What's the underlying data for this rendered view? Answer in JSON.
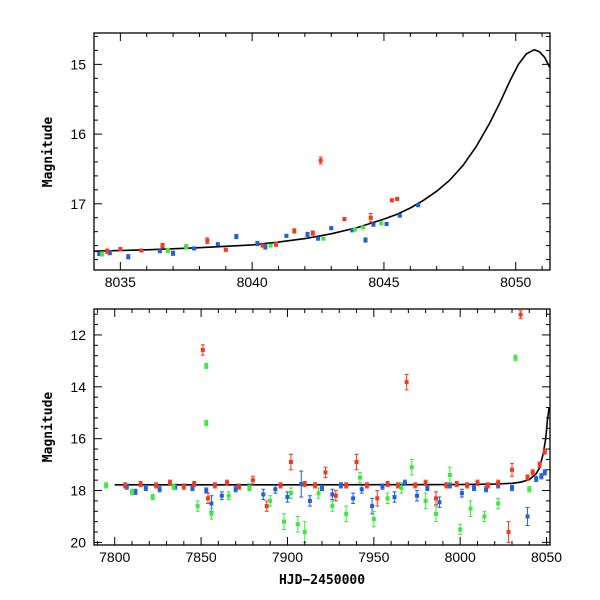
{
  "colors": {
    "blue": "#1f5fe0",
    "red": "#f03a1e",
    "green": "#3ee83e",
    "model": "#000000"
  },
  "chart_data": [
    {
      "type": "scatter",
      "title": "",
      "xlabel": "",
      "ylabel": "Magnitude",
      "xlim": [
        8034,
        8051.3
      ],
      "ylim": [
        17.95,
        14.55
      ],
      "y_inverted": true,
      "xticks": [
        8035,
        8040,
        8045,
        8050
      ],
      "yticks": [
        15,
        16,
        17
      ],
      "model_curve": {
        "name": "",
        "x": [
          8034,
          8036,
          8038,
          8040,
          8041,
          8042,
          8043,
          8044,
          8045,
          8045.5,
          8046,
          8046.5,
          8047,
          8047.5,
          8048,
          8048.5,
          8049,
          8049.4,
          8049.8,
          8050.1,
          8050.4,
          8050.7,
          8050.9,
          8051.1,
          8051.3
        ],
        "y": [
          17.68,
          17.66,
          17.63,
          17.59,
          17.55,
          17.5,
          17.43,
          17.34,
          17.22,
          17.15,
          17.06,
          16.95,
          16.82,
          16.66,
          16.45,
          16.18,
          15.85,
          15.55,
          15.22,
          15.0,
          14.85,
          14.79,
          14.82,
          14.9,
          15.05
        ]
      },
      "series": [
        {
          "color": "blue",
          "x": [
            8034.2,
            8034.6,
            8035.3,
            8036.5,
            8037.0,
            8037.8,
            8038.7,
            8039.4,
            8040.2,
            8040.5,
            8041.3,
            8042.1,
            8042.5,
            8043.0,
            8043.8,
            8044.3,
            8044.6,
            8045.1,
            8045.6,
            8046.3
          ],
          "y": [
            17.72,
            17.7,
            17.76,
            17.68,
            17.71,
            17.64,
            17.58,
            17.47,
            17.57,
            17.62,
            17.46,
            17.44,
            17.5,
            17.35,
            17.38,
            17.52,
            17.3,
            17.29,
            17.17,
            17.02
          ],
          "err": [
            0.02,
            0.03,
            0.03,
            0.02,
            0.03,
            0.02,
            0.02,
            0.03,
            0.03,
            0.03,
            0.02,
            0.03,
            0.02,
            0.02,
            0.02,
            0.03,
            0.02,
            0.02,
            0.02,
            0.02
          ]
        },
        {
          "color": "red",
          "x": [
            8034.5,
            8035.0,
            8035.8,
            8036.6,
            8037.5,
            8038.3,
            8039.0,
            8040.4,
            8040.9,
            8041.6,
            8042.3,
            8042.6,
            8043.5,
            8044.5,
            8045.3,
            8045.5
          ],
          "y": [
            17.68,
            17.65,
            17.67,
            17.6,
            17.61,
            17.53,
            17.66,
            17.6,
            17.58,
            17.39,
            17.42,
            16.38,
            17.22,
            17.2,
            16.95,
            16.93
          ],
          "err": [
            0.03,
            0.02,
            0.02,
            0.03,
            0.02,
            0.04,
            0.02,
            0.02,
            0.03,
            0.03,
            0.03,
            0.05,
            0.02,
            0.06,
            0.02,
            0.02
          ]
        },
        {
          "color": "green",
          "x": [
            8034.3,
            8036.8,
            8037.5,
            8040.7,
            8042.7,
            8043.9,
            8044.2,
            8044.9
          ],
          "y": [
            17.72,
            17.67,
            17.62,
            17.6,
            17.5,
            17.37,
            17.34,
            17.28
          ],
          "err": [
            0.03,
            0.03,
            0.03,
            0.02,
            0.02,
            0.02,
            0.02,
            0.02
          ]
        }
      ]
    },
    {
      "type": "scatter",
      "title": "",
      "xlabel": "HJD−2450000",
      "ylabel": "Magnitude",
      "xlim": [
        7788,
        8052
      ],
      "ylim": [
        20.1,
        11.0
      ],
      "y_inverted": true,
      "xticks": [
        7800,
        7850,
        7900,
        7950,
        8000,
        8050
      ],
      "yticks": [
        12,
        14,
        16,
        18,
        20
      ],
      "baseline_mag": 17.78,
      "model_curve": {
        "name": "",
        "x": [
          7800,
          7900,
          8000,
          8020,
          8030,
          8035,
          8040,
          8044,
          8046,
          8048,
          8049.5,
          8050.5,
          8051.5
        ],
        "y": [
          17.78,
          17.78,
          17.77,
          17.75,
          17.72,
          17.68,
          17.58,
          17.35,
          17.12,
          16.6,
          16.0,
          15.3,
          14.8
        ]
      },
      "series": [
        {
          "color": "blue",
          "x": [
            7807,
            7812,
            7818,
            7826,
            7835,
            7845,
            7853,
            7856,
            7862,
            7870,
            7878,
            7886,
            7893,
            7900,
            7908,
            7913,
            7920,
            7926,
            7931,
            7938,
            7943,
            7949,
            7955,
            7962,
            7968,
            7975,
            7981,
            7988,
            7994,
            8001,
            8008,
            8015,
            8022,
            8030,
            8039,
            8044,
            8047,
            8049
          ],
          "y": [
            17.85,
            18.05,
            17.9,
            17.95,
            17.85,
            17.9,
            18.0,
            18.5,
            18.2,
            17.95,
            17.85,
            18.15,
            17.95,
            18.25,
            17.75,
            18.4,
            17.9,
            18.15,
            17.8,
            18.3,
            17.95,
            18.6,
            17.85,
            18.25,
            17.7,
            18.2,
            17.9,
            18.45,
            17.8,
            18.1,
            17.9,
            17.95,
            17.8,
            17.9,
            19.0,
            17.55,
            17.45,
            17.3
          ],
          "err": [
            0.1,
            0.1,
            0.1,
            0.1,
            0.1,
            0.1,
            0.1,
            0.3,
            0.15,
            0.1,
            0.1,
            0.2,
            0.15,
            0.2,
            0.5,
            0.2,
            0.1,
            0.2,
            0.1,
            0.2,
            0.15,
            0.3,
            0.1,
            0.2,
            0.1,
            0.2,
            0.1,
            0.2,
            0.1,
            0.15,
            0.1,
            0.1,
            0.1,
            0.1,
            0.35,
            0.1,
            0.1,
            0.1
          ]
        },
        {
          "color": "red",
          "x": [
            7806,
            7815,
            7824,
            7832,
            7840,
            7846,
            7851,
            7854,
            7858,
            7865,
            7872,
            7880,
            7888,
            7896,
            7902,
            7910,
            7916,
            7922,
            7928,
            7934,
            7940,
            7946,
            7952,
            7958,
            7964,
            7969,
            7974,
            7980,
            7986,
            7992,
            7998,
            8004,
            8010,
            8016,
            8022,
            8028,
            8030,
            8035,
            8039,
            8042,
            8046,
            8049
          ],
          "y": [
            17.8,
            17.75,
            17.8,
            17.7,
            17.85,
            17.75,
            12.58,
            18.3,
            17.8,
            17.7,
            17.85,
            17.6,
            18.6,
            17.8,
            16.9,
            17.75,
            17.8,
            17.3,
            18.2,
            17.8,
            16.9,
            17.8,
            18.3,
            17.75,
            17.8,
            13.82,
            17.8,
            17.7,
            18.3,
            17.8,
            17.75,
            17.8,
            17.7,
            17.8,
            17.7,
            19.6,
            17.2,
            11.22,
            17.5,
            17.3,
            17.0,
            16.5
          ],
          "err": [
            0.1,
            0.1,
            0.1,
            0.1,
            0.1,
            0.1,
            0.2,
            0.2,
            0.1,
            0.1,
            0.1,
            0.15,
            0.2,
            0.1,
            0.3,
            0.1,
            0.1,
            0.2,
            0.2,
            0.1,
            0.3,
            0.1,
            0.3,
            0.1,
            0.1,
            0.3,
            0.1,
            0.1,
            0.25,
            0.1,
            0.1,
            0.1,
            0.1,
            0.1,
            0.1,
            0.4,
            0.25,
            0.15,
            0.1,
            0.1,
            0.1,
            0.1
          ]
        },
        {
          "color": "green",
          "x": [
            7795,
            7810,
            7822,
            7834,
            7848,
            7853,
            7853,
            7856,
            7866,
            7878,
            7890,
            7898,
            7902,
            7906,
            7910,
            7918,
            7926,
            7934,
            7942,
            7950,
            7958,
            7966,
            7972,
            7980,
            7986,
            7994,
            8000,
            8006,
            8014,
            8022,
            8032,
            8040
          ],
          "y": [
            17.8,
            18.05,
            18.25,
            17.85,
            18.6,
            13.2,
            15.4,
            18.9,
            18.2,
            17.9,
            18.4,
            19.2,
            18.1,
            19.3,
            19.6,
            18.1,
            18.6,
            18.9,
            17.5,
            19.1,
            18.3,
            17.9,
            17.1,
            18.4,
            18.9,
            17.4,
            19.5,
            18.7,
            19.0,
            18.5,
            12.88,
            17.95
          ],
          "err": [
            0.1,
            0.1,
            0.1,
            0.1,
            0.2,
            0.1,
            0.1,
            0.2,
            0.15,
            0.1,
            0.2,
            0.3,
            0.2,
            0.3,
            0.4,
            0.2,
            0.2,
            0.3,
            0.2,
            0.3,
            0.2,
            0.2,
            0.3,
            0.3,
            0.3,
            0.3,
            0.2,
            0.3,
            0.2,
            0.2,
            0.1,
            0.1
          ]
        }
      ]
    }
  ]
}
